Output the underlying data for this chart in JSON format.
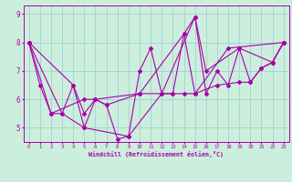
{
  "xlabel": "Windchill (Refroidissement éolien,°C)",
  "bg_color": "#cceedd",
  "line_color": "#aa00aa",
  "grid_color": "#99cccc",
  "xlim": [
    -0.5,
    23.5
  ],
  "ylim": [
    4.5,
    9.3
  ],
  "xticks": [
    0,
    1,
    2,
    3,
    4,
    5,
    6,
    7,
    8,
    9,
    10,
    11,
    12,
    13,
    14,
    15,
    16,
    17,
    18,
    19,
    20,
    21,
    22,
    23
  ],
  "yticks": [
    5,
    6,
    7,
    8,
    9
  ],
  "series1": [
    [
      0,
      8.0
    ],
    [
      1,
      6.5
    ],
    [
      2,
      5.5
    ],
    [
      3,
      5.5
    ],
    [
      4,
      6.5
    ],
    [
      5,
      5.0
    ],
    [
      6,
      6.0
    ],
    [
      7,
      5.8
    ],
    [
      8,
      4.6
    ],
    [
      9,
      4.7
    ],
    [
      10,
      7.0
    ],
    [
      11,
      7.8
    ],
    [
      12,
      6.2
    ],
    [
      13,
      6.2
    ],
    [
      14,
      8.3
    ],
    [
      15,
      8.9
    ],
    [
      16,
      6.2
    ],
    [
      17,
      7.0
    ],
    [
      18,
      6.5
    ],
    [
      19,
      7.8
    ],
    [
      20,
      6.6
    ],
    [
      21,
      7.1
    ],
    [
      22,
      7.3
    ],
    [
      23,
      8.0
    ]
  ],
  "series2": [
    [
      0,
      8.0
    ],
    [
      4,
      6.5
    ],
    [
      5,
      5.5
    ],
    [
      6,
      6.0
    ],
    [
      10,
      6.2
    ],
    [
      13,
      6.2
    ],
    [
      14,
      6.2
    ],
    [
      15,
      6.2
    ],
    [
      17,
      6.5
    ],
    [
      19,
      6.6
    ],
    [
      20,
      6.6
    ],
    [
      21,
      7.1
    ],
    [
      22,
      7.3
    ],
    [
      23,
      8.0
    ]
  ],
  "series3": [
    [
      0,
      8.0
    ],
    [
      2,
      5.5
    ],
    [
      5,
      6.0
    ],
    [
      6,
      6.0
    ],
    [
      7,
      5.8
    ],
    [
      10,
      6.2
    ],
    [
      14,
      8.3
    ],
    [
      15,
      6.2
    ],
    [
      18,
      7.8
    ],
    [
      23,
      8.0
    ]
  ],
  "series4": [
    [
      0,
      8.0
    ],
    [
      3,
      5.5
    ],
    [
      5,
      5.0
    ],
    [
      9,
      4.7
    ],
    [
      12,
      6.2
    ],
    [
      15,
      8.9
    ],
    [
      16,
      7.0
    ],
    [
      19,
      7.8
    ],
    [
      22,
      7.3
    ],
    [
      23,
      8.0
    ]
  ]
}
